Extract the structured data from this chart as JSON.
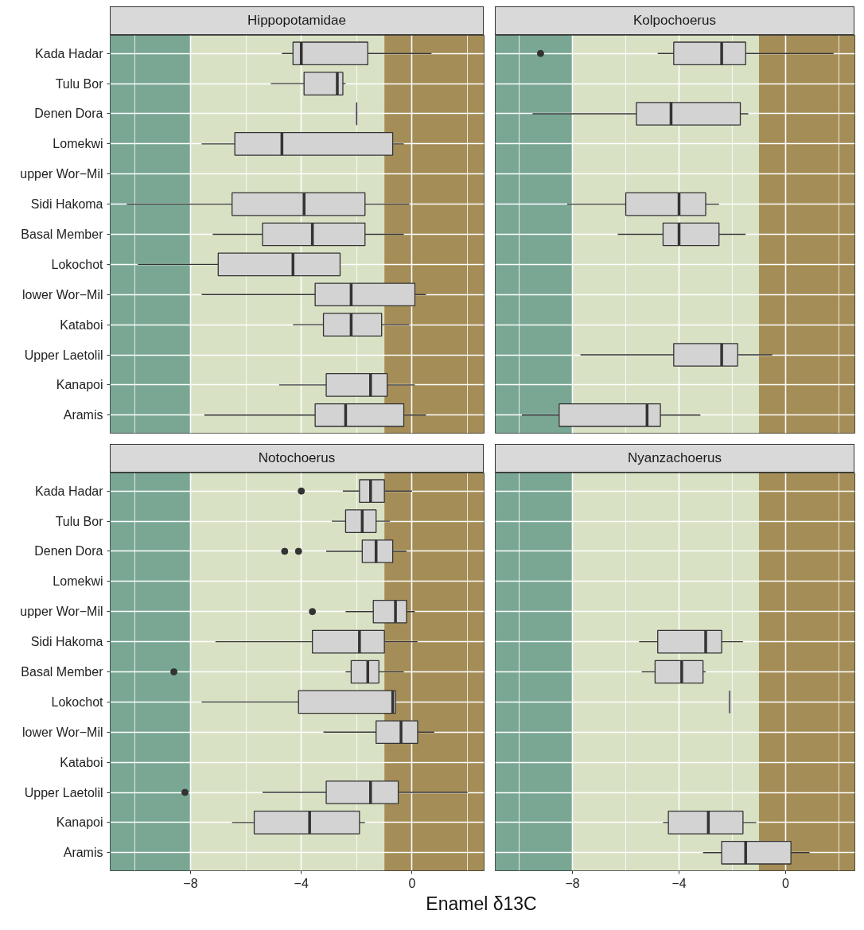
{
  "chart_data": [
    {
      "type": "box",
      "orientation": "horizontal",
      "title": "Hippopotamidae",
      "color": "#d3d3d3",
      "grid": true,
      "tick_labels": "y",
      "categories": [
        "Kada Hadar",
        "Tulu Bor",
        "Denen Dora",
        "Lomekwi",
        "upper Wor−Mil",
        "Sidi Hakoma",
        "Basal Member",
        "Lokochot",
        "lower Wor−Mil",
        "Kataboi",
        "Upper Laetolil",
        "Kanapoi",
        "Aramis"
      ],
      "boxes": [
        {
          "low": -4.7,
          "q1": -4.3,
          "median": -4.0,
          "q3": -1.6,
          "high": 0.7
        },
        {
          "low": -5.1,
          "q1": -3.9,
          "median": -2.7,
          "q3": -2.5,
          "high": -2.4
        },
        {
          "low": -2.0,
          "q1": -2.0,
          "median": -2.0,
          "q3": -2.0,
          "high": -2.0
        },
        {
          "low": -7.6,
          "q1": -6.4,
          "median": -4.7,
          "q3": -0.7,
          "high": -0.3
        },
        null,
        {
          "low": -10.3,
          "q1": -6.5,
          "median": -3.9,
          "q3": -1.7,
          "high": -0.1
        },
        {
          "low": -7.2,
          "q1": -5.4,
          "median": -3.6,
          "q3": -1.7,
          "high": -0.3
        },
        {
          "low": -9.9,
          "q1": -7.0,
          "median": -4.3,
          "q3": -2.6,
          "high": -2.6
        },
        {
          "low": -7.6,
          "q1": -3.5,
          "median": -2.2,
          "q3": 0.1,
          "high": 0.5
        },
        {
          "low": -4.3,
          "q1": -3.2,
          "median": -2.2,
          "q3": -1.1,
          "high": -0.1
        },
        null,
        {
          "low": -4.8,
          "q1": -3.1,
          "median": -1.5,
          "q3": -0.9,
          "high": 0.1
        },
        {
          "low": -7.5,
          "q1": -3.5,
          "median": -2.4,
          "q3": -0.3,
          "high": 0.5
        }
      ],
      "xlim": [
        -10.9,
        2.6
      ],
      "xticks": [
        {
          "value": -10,
          "label": null
        },
        -8,
        {
          "value": -6,
          "label": null
        },
        -4,
        {
          "value": -2,
          "label": null
        },
        0,
        {
          "value": 2,
          "label": null
        }
      ],
      "bands": [
        {
          "axis": "x",
          "from": -10.9,
          "to": -8,
          "color": "#79a794"
        },
        {
          "axis": "x",
          "from": -8,
          "to": -1,
          "color": "#d9e1c4"
        },
        {
          "axis": "x",
          "from": -1,
          "to": 2.6,
          "color": "#a58d57"
        }
      ]
    },
    {
      "type": "box",
      "orientation": "horizontal",
      "title": "Kolpochoerus",
      "color": "#d3d3d3",
      "grid": true,
      "tick_labels": false,
      "categories": [
        null,
        null,
        null,
        null,
        null,
        null,
        null,
        null,
        null,
        null,
        null,
        null,
        null
      ],
      "boxes": [
        {
          "low": -4.8,
          "q1": -4.2,
          "median": -2.4,
          "q3": -1.5,
          "high": 1.8,
          "outliers": [
            -9.2
          ]
        },
        null,
        {
          "low": -9.5,
          "q1": -5.6,
          "median": -4.3,
          "q3": -1.7,
          "high": -1.4
        },
        null,
        null,
        {
          "low": -8.2,
          "q1": -6.0,
          "median": -4.0,
          "q3": -3.0,
          "high": -2.5
        },
        {
          "low": -6.3,
          "q1": -4.6,
          "median": -4.0,
          "q3": -2.5,
          "high": -1.5
        },
        null,
        null,
        null,
        {
          "low": -7.7,
          "q1": -4.2,
          "median": -2.4,
          "q3": -1.8,
          "high": -0.5
        },
        null,
        {
          "low": -9.9,
          "q1": -8.5,
          "median": -5.2,
          "q3": -4.7,
          "high": -3.2
        }
      ],
      "xlim": [
        -10.9,
        2.6
      ],
      "xticks": [
        {
          "value": -10,
          "label": null
        },
        -8,
        {
          "value": -6,
          "label": null
        },
        -4,
        {
          "value": -2,
          "label": null
        },
        0,
        {
          "value": 2,
          "label": null
        }
      ],
      "bands": [
        {
          "axis": "x",
          "from": -10.9,
          "to": -8,
          "color": "#79a794"
        },
        {
          "axis": "x",
          "from": -8,
          "to": -1,
          "color": "#d9e1c4"
        },
        {
          "axis": "x",
          "from": -1,
          "to": 2.6,
          "color": "#a58d57"
        }
      ]
    },
    {
      "type": "box",
      "orientation": "horizontal",
      "title": "Notochoerus",
      "color": "#d3d3d3",
      "grid": true,
      "xlabel": "Enamel δ13C",
      "categories": [
        "Kada Hadar",
        "Tulu Bor",
        "Denen Dora",
        "Lomekwi",
        "upper Wor−Mil",
        "Sidi Hakoma",
        "Basal Member",
        "Lokochot",
        "lower Wor−Mil",
        "Kataboi",
        "Upper Laetolil",
        "Kanapoi",
        "Aramis"
      ],
      "boxes": [
        {
          "low": -2.5,
          "q1": -1.9,
          "median": -1.5,
          "q3": -1.0,
          "high": 0.0,
          "outliers": [
            -4.0
          ]
        },
        {
          "low": -2.9,
          "q1": -2.4,
          "median": -1.8,
          "q3": -1.3,
          "high": -0.8
        },
        {
          "low": -3.1,
          "q1": -1.8,
          "median": -1.3,
          "q3": -0.7,
          "high": -0.2,
          "outliers": [
            -4.6,
            -4.1
          ]
        },
        null,
        {
          "low": -2.4,
          "q1": -1.4,
          "median": -0.6,
          "q3": -0.2,
          "high": 0.1,
          "outliers": [
            -3.6
          ]
        },
        {
          "low": -7.1,
          "q1": -3.6,
          "median": -1.9,
          "q3": -1.0,
          "high": 0.2
        },
        {
          "low": -2.4,
          "q1": -2.2,
          "median": -1.6,
          "q3": -1.2,
          "high": -0.3,
          "outliers": [
            -8.6
          ]
        },
        {
          "low": -7.6,
          "q1": -4.1,
          "median": -0.7,
          "q3": -0.6,
          "high": -0.6
        },
        {
          "low": -3.2,
          "q1": -1.3,
          "median": -0.4,
          "q3": 0.2,
          "high": 0.8
        },
        null,
        {
          "low": -5.4,
          "q1": -3.1,
          "median": -1.5,
          "q3": -0.5,
          "high": 2.0,
          "outliers": [
            -8.2
          ]
        },
        {
          "low": -6.5,
          "q1": -5.7,
          "median": -3.7,
          "q3": -1.9,
          "high": -1.7
        },
        null
      ],
      "xlim": [
        -10.9,
        2.6
      ],
      "xticks": [
        {
          "value": -10,
          "label": null
        },
        {
          "value": -8,
          "label": "−8"
        },
        {
          "value": -6,
          "label": null
        },
        {
          "value": -4,
          "label": "−4"
        },
        {
          "value": -2,
          "label": null
        },
        {
          "value": 0,
          "label": "0"
        },
        {
          "value": 2,
          "label": null
        }
      ],
      "bands": [
        {
          "axis": "x",
          "from": -10.9,
          "to": -8,
          "color": "#79a794"
        },
        {
          "axis": "x",
          "from": -8,
          "to": -1,
          "color": "#d9e1c4"
        },
        {
          "axis": "x",
          "from": -1,
          "to": 2.6,
          "color": "#a58d57"
        }
      ]
    },
    {
      "type": "box",
      "orientation": "horizontal",
      "title": "Nyanzachoerus",
      "color": "#d3d3d3",
      "grid": true,
      "tick_labels": "x",
      "categories": [
        null,
        null,
        null,
        null,
        null,
        null,
        null,
        null,
        null,
        null,
        null,
        null,
        null
      ],
      "boxes": [
        null,
        null,
        null,
        null,
        null,
        {
          "low": -5.5,
          "q1": -4.8,
          "median": -3.0,
          "q3": -2.4,
          "high": -1.6
        },
        {
          "low": -5.4,
          "q1": -4.9,
          "median": -3.9,
          "q3": -3.1,
          "high": -3.0
        },
        {
          "low": -2.1,
          "q1": -2.1,
          "median": -2.1,
          "q3": -2.1,
          "high": -2.1
        },
        null,
        null,
        null,
        {
          "low": -4.6,
          "q1": -4.4,
          "median": -2.9,
          "q3": -1.6,
          "high": -1.1
        },
        {
          "low": -3.1,
          "q1": -2.4,
          "median": -1.5,
          "q3": 0.2,
          "high": 0.9
        }
      ],
      "xlim": [
        -10.9,
        2.6
      ],
      "xticks": [
        {
          "value": -10,
          "label": null
        },
        {
          "value": -8,
          "label": "−8"
        },
        {
          "value": -6,
          "label": null
        },
        {
          "value": -4,
          "label": "−4"
        },
        {
          "value": -2,
          "label": null
        },
        {
          "value": 0,
          "label": "0"
        },
        {
          "value": 2,
          "label": null
        }
      ],
      "bands": [
        {
          "axis": "x",
          "from": -10.9,
          "to": -8,
          "color": "#79a794"
        },
        {
          "axis": "x",
          "from": -8,
          "to": -1,
          "color": "#d9e1c4"
        },
        {
          "axis": "x",
          "from": -1,
          "to": 2.6,
          "color": "#a58d57"
        }
      ]
    }
  ]
}
